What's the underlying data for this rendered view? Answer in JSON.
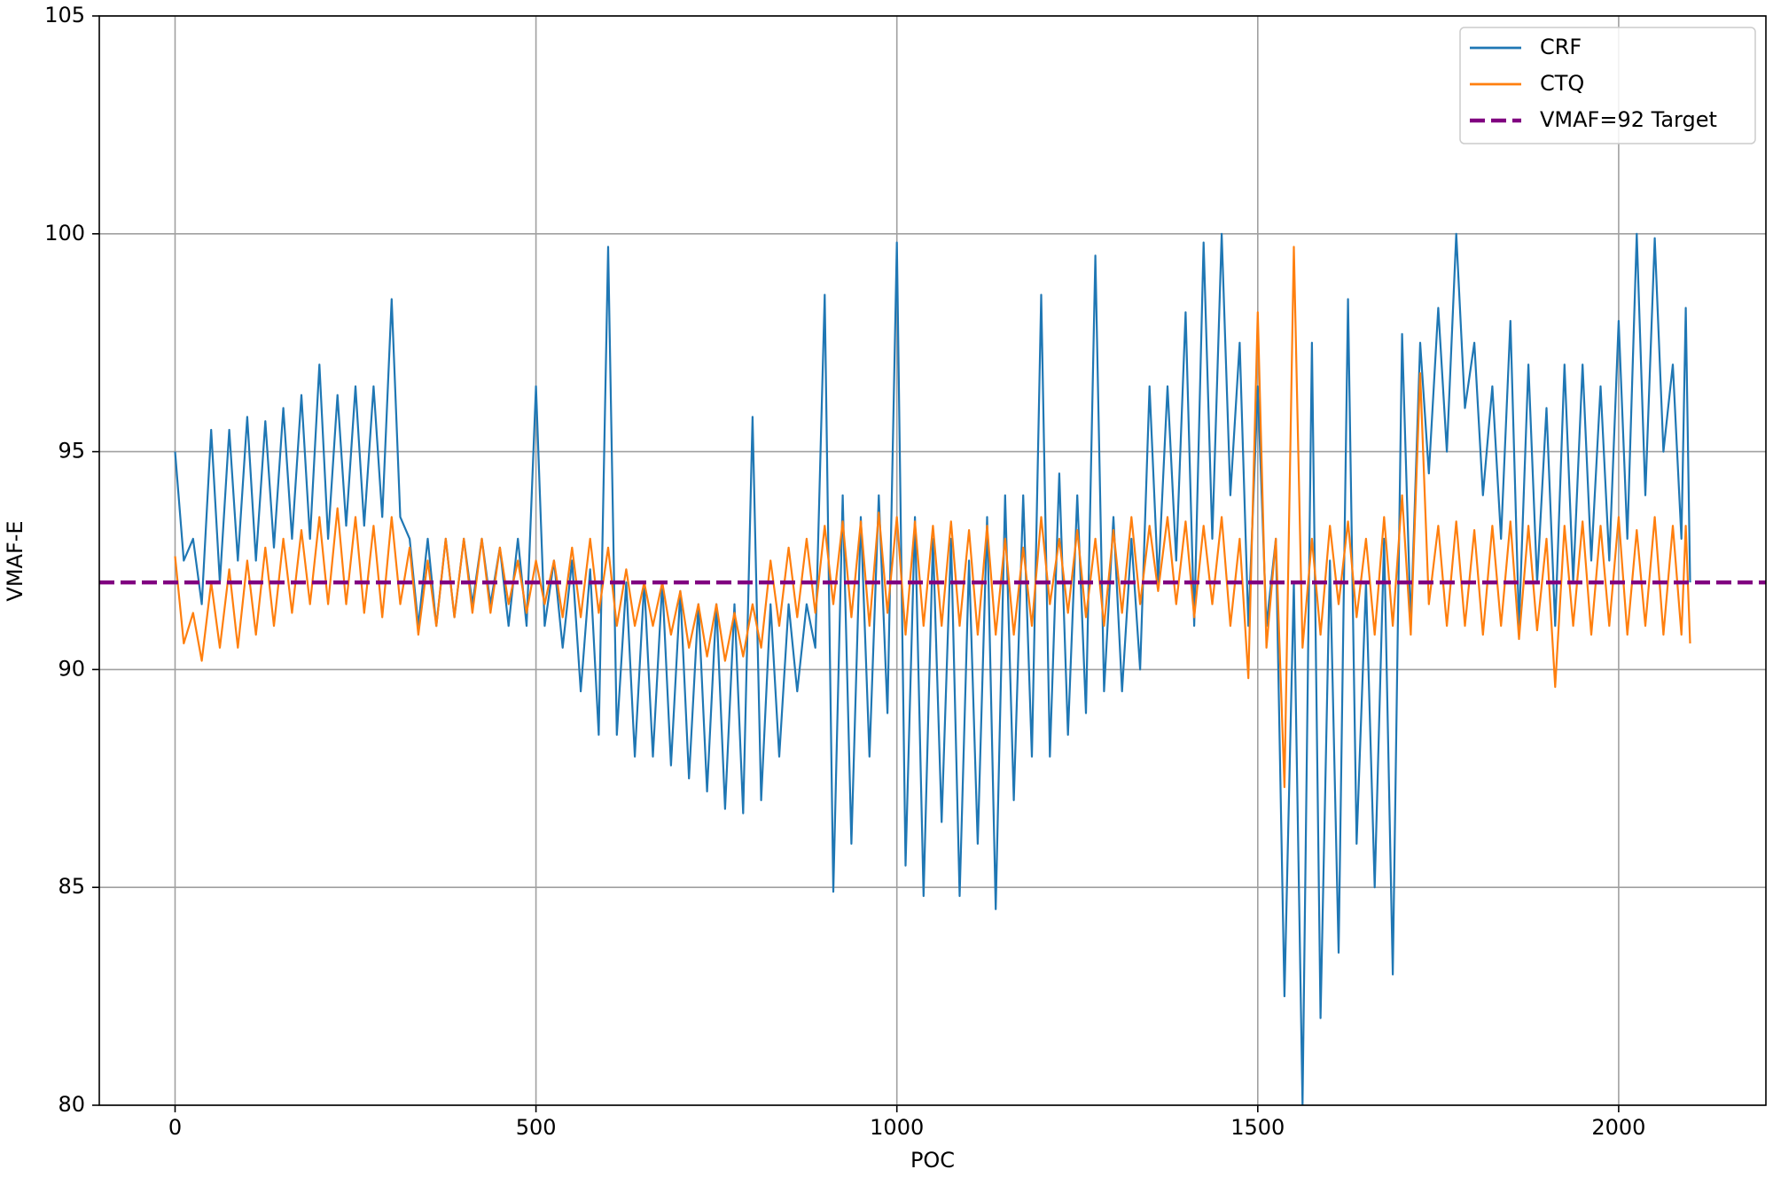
{
  "chart_data": {
    "type": "line",
    "xlabel": "POC",
    "ylabel": "VMAF-E",
    "xlim": [
      -105,
      2204
    ],
    "ylim": [
      80,
      105
    ],
    "xticks": [
      0,
      500,
      1000,
      1500,
      2000
    ],
    "yticks": [
      80,
      85,
      90,
      95,
      100,
      105
    ],
    "grid": true,
    "legend": "upper right",
    "x": [
      0,
      12,
      25,
      37,
      50,
      62,
      75,
      87,
      100,
      112,
      125,
      137,
      150,
      162,
      175,
      187,
      200,
      212,
      225,
      237,
      250,
      262,
      275,
      287,
      300,
      312,
      325,
      337,
      350,
      362,
      375,
      387,
      400,
      412,
      425,
      437,
      450,
      462,
      475,
      487,
      500,
      512,
      525,
      537,
      550,
      562,
      575,
      587,
      600,
      612,
      625,
      637,
      650,
      662,
      675,
      687,
      700,
      712,
      725,
      737,
      750,
      762,
      775,
      787,
      800,
      812,
      825,
      837,
      850,
      862,
      875,
      887,
      900,
      912,
      925,
      937,
      950,
      962,
      975,
      987,
      1000,
      1012,
      1025,
      1037,
      1050,
      1062,
      1075,
      1087,
      1100,
      1112,
      1125,
      1137,
      1150,
      1162,
      1175,
      1187,
      1200,
      1212,
      1225,
      1237,
      1250,
      1262,
      1275,
      1287,
      1300,
      1312,
      1325,
      1337,
      1350,
      1362,
      1375,
      1387,
      1400,
      1412,
      1425,
      1437,
      1450,
      1462,
      1475,
      1487,
      1500,
      1512,
      1525,
      1537,
      1550,
      1562,
      1575,
      1587,
      1600,
      1612,
      1625,
      1637,
      1650,
      1662,
      1675,
      1687,
      1700,
      1712,
      1725,
      1737,
      1750,
      1762,
      1775,
      1787,
      1800,
      1812,
      1825,
      1837,
      1850,
      1862,
      1875,
      1887,
      1900,
      1912,
      1925,
      1937,
      1950,
      1962,
      1975,
      1987,
      2000,
      2012,
      2025,
      2037,
      2050,
      2062,
      2075,
      2087,
      2093,
      2099
    ],
    "series": [
      {
        "name": "CRF",
        "color": "#1f77b4",
        "values": [
          95,
          92.5,
          93,
          91.5,
          95.5,
          92,
          95.5,
          92.5,
          95.8,
          92.5,
          95.7,
          92.8,
          96,
          93,
          96.3,
          93,
          97,
          93,
          96.3,
          93.3,
          96.5,
          93.3,
          96.5,
          93.5,
          98.5,
          93.5,
          93,
          91,
          93,
          91,
          93,
          91.2,
          93,
          91.5,
          93,
          91.5,
          92.8,
          91,
          93,
          91,
          96.5,
          91,
          92.5,
          90.5,
          92.5,
          89.5,
          92.3,
          88.5,
          99.7,
          88.5,
          92,
          88,
          92,
          88,
          92,
          87.8,
          91.8,
          87.5,
          91.5,
          87.2,
          91.5,
          86.8,
          91.5,
          86.7,
          95.8,
          87,
          91.5,
          88,
          91.5,
          89.5,
          91.5,
          90.5,
          98.6,
          84.9,
          94,
          86,
          93.5,
          88,
          94,
          89,
          99.8,
          85.5,
          93.5,
          84.8,
          93,
          86.5,
          93,
          84.8,
          92.5,
          86,
          93.5,
          84.5,
          94,
          87,
          94,
          88,
          98.6,
          88,
          94.5,
          88.5,
          94,
          89,
          99.5,
          89.5,
          93.5,
          89.5,
          93,
          90,
          96.5,
          92,
          96.5,
          92.5,
          98.2,
          91,
          99.8,
          93,
          100,
          94,
          97.5,
          91,
          96.5,
          91,
          93,
          82.5,
          92,
          80,
          97.5,
          82,
          92.5,
          83.5,
          98.5,
          86,
          92,
          85,
          93,
          83,
          97.7,
          91,
          97.5,
          94.5,
          98.3,
          95,
          100,
          96,
          97.5,
          94,
          96.5,
          93,
          98,
          91,
          97,
          92,
          96,
          91,
          97,
          92,
          97,
          92.5,
          96.5,
          92.5,
          98,
          93,
          100,
          94,
          99.9,
          95,
          97,
          93,
          98.3,
          92
        ]
      },
      {
        "name": "CTQ",
        "color": "#ff7f0e",
        "values": [
          92.6,
          90.6,
          91.3,
          90.2,
          92,
          90.5,
          92.3,
          90.5,
          92.5,
          90.8,
          92.8,
          91,
          93,
          91.3,
          93.2,
          91.5,
          93.5,
          91.5,
          93.7,
          91.5,
          93.5,
          91.3,
          93.3,
          91.2,
          93.5,
          91.5,
          92.8,
          90.8,
          92.5,
          91,
          93,
          91.2,
          93,
          91.3,
          93,
          91.3,
          92.8,
          91.5,
          92.5,
          91.3,
          92.5,
          91.5,
          92.5,
          91.2,
          92.8,
          91.2,
          93,
          91.3,
          92.8,
          91,
          92.3,
          91,
          92,
          91,
          92,
          90.8,
          91.8,
          90.5,
          91.5,
          90.3,
          91.5,
          90.2,
          91.3,
          90.3,
          91.5,
          90.5,
          92.5,
          91,
          92.8,
          91.2,
          93,
          91.3,
          93.3,
          91.5,
          93.4,
          91.2,
          93.4,
          91,
          93.6,
          91.3,
          93.5,
          90.8,
          93.4,
          91,
          93.3,
          91,
          93.4,
          91,
          93.2,
          90.8,
          93.3,
          90.8,
          93,
          90.8,
          92.8,
          91,
          93.5,
          91.5,
          93,
          91.3,
          93.2,
          91.2,
          93,
          91,
          93.2,
          91.3,
          93.5,
          91.5,
          93.3,
          91.8,
          93.5,
          91.5,
          93.4,
          91.2,
          93.3,
          91.5,
          93.5,
          91,
          93,
          89.8,
          98.2,
          90.5,
          93,
          87.3,
          99.7,
          90.5,
          93,
          90.8,
          93.3,
          91.5,
          93.4,
          91.2,
          93,
          90.8,
          93.5,
          91,
          94,
          90.8,
          96.8,
          91.5,
          93.3,
          91,
          93.4,
          91,
          93.2,
          90.8,
          93.3,
          91,
          93.4,
          90.7,
          93.3,
          90.9,
          93,
          89.6,
          93.3,
          91,
          93.4,
          90.8,
          93.3,
          91,
          93.5,
          90.8,
          93.2,
          91,
          93.5,
          90.8,
          93.3,
          90.8,
          93.3,
          90.6
        ]
      }
    ],
    "target": {
      "name": "VMAF=92 Target",
      "color": "#800080",
      "y": 92,
      "dash": true
    }
  }
}
